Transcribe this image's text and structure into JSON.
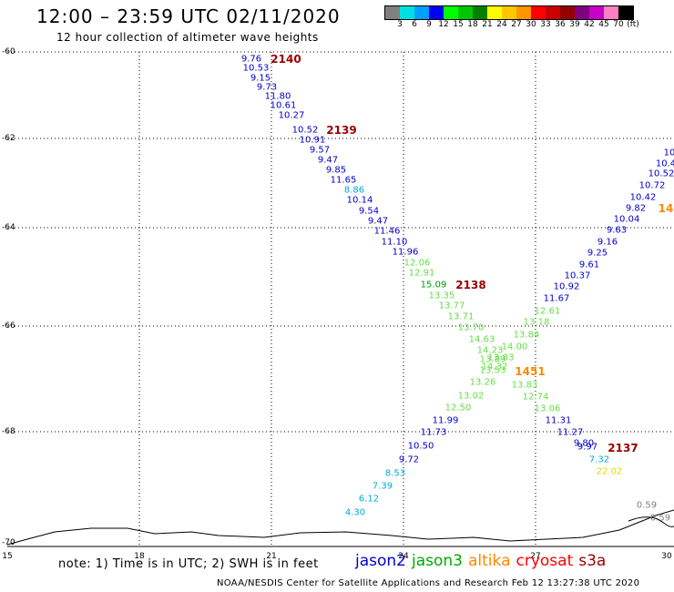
{
  "title": "12:00 – 23:59 UTC 02/11/2020",
  "subtitle": "12 hour collection of altimeter wave heights",
  "scale": {
    "colors": [
      "#808080",
      "#00e0e0",
      "#00a0ff",
      "#0000ff",
      "#00ff00",
      "#00c800",
      "#008000",
      "#ffff00",
      "#ffc800",
      "#ff9600",
      "#ff0000",
      "#c80000",
      "#960000",
      "#800080",
      "#c800c8",
      "#ff80c0",
      "#000000"
    ],
    "labels": [
      "3",
      "6",
      "9",
      "12",
      "15",
      "18",
      "21",
      "24",
      "27",
      "30",
      "33",
      "36",
      "39",
      "42",
      "45",
      "70",
      "(ft)"
    ]
  },
  "axes": {
    "lat_labels": [
      "-60",
      "-62",
      "-64",
      "-66",
      "-68",
      "-70"
    ],
    "lon_labels": [
      "15",
      "18",
      "21",
      "24",
      "27",
      "30"
    ]
  },
  "colors": {
    "blue": "#0000cc",
    "cyan": "#00aadd",
    "green": "#66dd44",
    "darkgreen": "#009900",
    "orange": "#ff8800",
    "yellow": "#dddd00",
    "gray": "#808080",
    "darkred": "#990000"
  },
  "passes": [
    "2140",
    "2139",
    "2138",
    "1451",
    "2137",
    "14"
  ],
  "points": {
    "track1": [
      {
        "t": "9.76",
        "c": "blue"
      },
      {
        "t": "10.53",
        "c": "blue"
      },
      {
        "t": "9.15",
        "c": "blue"
      },
      {
        "t": "9.73",
        "c": "blue"
      },
      {
        "t": "11.80",
        "c": "blue"
      },
      {
        "t": "10.61",
        "c": "blue"
      },
      {
        "t": "10.27",
        "c": "blue"
      },
      {
        "t": "10.52",
        "c": "blue"
      },
      {
        "t": "10.91",
        "c": "blue"
      },
      {
        "t": "9.57",
        "c": "blue"
      },
      {
        "t": "9.47",
        "c": "blue"
      },
      {
        "t": "9.85",
        "c": "blue"
      },
      {
        "t": "11.65",
        "c": "blue"
      },
      {
        "t": "8.86",
        "c": "cyan"
      },
      {
        "t": "10.14",
        "c": "blue"
      },
      {
        "t": "9.54",
        "c": "blue"
      },
      {
        "t": "9.47",
        "c": "blue"
      },
      {
        "t": "11.46",
        "c": "blue"
      },
      {
        "t": "11.10",
        "c": "blue"
      },
      {
        "t": "11.96",
        "c": "blue"
      },
      {
        "t": "12.06",
        "c": "green"
      },
      {
        "t": "12.91",
        "c": "green"
      },
      {
        "t": "15.09",
        "c": "darkgreen"
      },
      {
        "t": "13.35",
        "c": "green"
      },
      {
        "t": "13.77",
        "c": "green"
      },
      {
        "t": "13.71",
        "c": "green"
      },
      {
        "t": "13.70",
        "c": "green"
      },
      {
        "t": "14.63",
        "c": "green"
      },
      {
        "t": "14.23",
        "c": "green"
      },
      {
        "t": "13.89",
        "c": "green"
      },
      {
        "t": "14.32",
        "c": "green"
      },
      {
        "t": "13.83",
        "c": "green"
      },
      {
        "t": "12.74",
        "c": "green"
      },
      {
        "t": "13.06",
        "c": "green"
      },
      {
        "t": "11.31",
        "c": "blue"
      },
      {
        "t": "11.27",
        "c": "blue"
      },
      {
        "t": "9.80",
        "c": "blue"
      },
      {
        "t": "9.97",
        "c": "blue"
      },
      {
        "t": "7.32",
        "c": "cyan"
      },
      {
        "t": "22.02",
        "c": "yellow"
      }
    ],
    "track2": [
      {
        "t": "10",
        "c": "blue"
      },
      {
        "t": "10.4",
        "c": "blue"
      },
      {
        "t": "10.52",
        "c": "blue"
      },
      {
        "t": "10.72",
        "c": "blue"
      },
      {
        "t": "10.42",
        "c": "blue"
      },
      {
        "t": "9.82",
        "c": "blue"
      },
      {
        "t": "10.04",
        "c": "blue"
      },
      {
        "t": "9.63",
        "c": "blue"
      },
      {
        "t": "9.16",
        "c": "blue"
      },
      {
        "t": "9.25",
        "c": "blue"
      },
      {
        "t": "9.61",
        "c": "blue"
      },
      {
        "t": "10.37",
        "c": "blue"
      },
      {
        "t": "10.92",
        "c": "blue"
      },
      {
        "t": "11.67",
        "c": "blue"
      },
      {
        "t": "12.61",
        "c": "green"
      },
      {
        "t": "13.18",
        "c": "green"
      },
      {
        "t": "13.84",
        "c": "green"
      },
      {
        "t": "14.00",
        "c": "green"
      },
      {
        "t": "13.83",
        "c": "green"
      },
      {
        "t": "13.53",
        "c": "green"
      },
      {
        "t": "13.26",
        "c": "green"
      },
      {
        "t": "13.02",
        "c": "green"
      },
      {
        "t": "12.50",
        "c": "green"
      },
      {
        "t": "11.99",
        "c": "blue"
      },
      {
        "t": "11.73",
        "c": "blue"
      },
      {
        "t": "10.50",
        "c": "blue"
      },
      {
        "t": "9.72",
        "c": "blue"
      },
      {
        "t": "8.53",
        "c": "cyan"
      },
      {
        "t": "7.39",
        "c": "cyan"
      },
      {
        "t": "6.12",
        "c": "cyan"
      },
      {
        "t": "4.30",
        "c": "cyan"
      }
    ],
    "extra": [
      {
        "t": "0.59",
        "c": "gray"
      },
      {
        "t": "0.59",
        "c": "gray"
      }
    ]
  },
  "legend": {
    "note": "note:  1) Time is in UTC;  2) SWH is in feet",
    "sats": [
      {
        "name": "jason2",
        "color": "#0000cc"
      },
      {
        "name": "jason3",
        "color": "#00aa00"
      },
      {
        "name": "altika",
        "color": "#ff8800"
      },
      {
        "name": "cryosat",
        "color": "#ff0000"
      },
      {
        "name": "s3a",
        "color": "#990000"
      }
    ]
  },
  "footer": "NOAA/NESDIS Center for Satellite Applications and Research    Feb 12 13:27:38 UTC 2020"
}
